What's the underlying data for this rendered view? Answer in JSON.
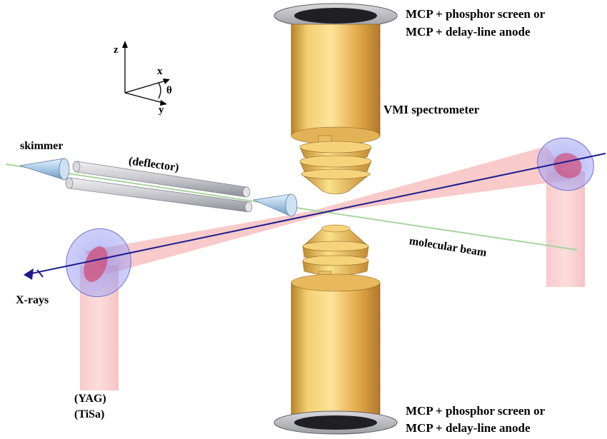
{
  "labels": {
    "mcp_top_line1": "MCP + phosphor screen or",
    "mcp_top_line2": "MCP + delay-line anode",
    "mcp_bottom_line1": "MCP + phosphor screen or",
    "mcp_bottom_line2": "MCP + delay-line anode",
    "vmi_spectrometer": "VMI spectrometer",
    "skimmer": "skimmer",
    "deflector": "(deflector)",
    "molecular_beam": "molecular beam",
    "x_rays": "X-rays",
    "yag": "(YAG)",
    "tisa": "(TiSa)"
  },
  "axes": {
    "z": "z",
    "x": "x",
    "y": "y",
    "theta": "θ"
  },
  "colors": {
    "gold": "#e8b64a",
    "xray_line": "#1a1a8c",
    "laser_red": "#f08080",
    "disk_blue": "#9a9cf0",
    "molecular_beam": "#a6d6a6",
    "rod_gray": "#c8c8cc",
    "skimmer_blue": "#a9cbe8"
  }
}
